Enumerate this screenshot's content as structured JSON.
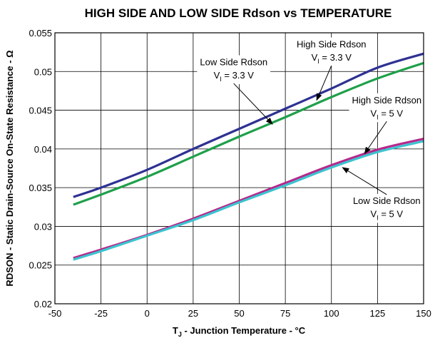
{
  "colors": {
    "high_side_3v3": "#2e3192",
    "low_side_3v3": "#1ea04a",
    "high_side_5v": "#b5288c",
    "low_side_5v": "#3cc3d0",
    "grid": "#000000"
  },
  "chart_data": {
    "type": "line",
    "title": "HIGH SIDE AND LOW SIDE Rdson vs TEMPERATURE",
    "xlabel": {
      "main": "T",
      "sub": "J",
      "rest": " - Junction Temperature - °C"
    },
    "ylabel": "RDSON - Static Drain-Source On-State Resistance - Ω",
    "xlim": [
      -50,
      150
    ],
    "ylim": [
      0.02,
      0.055
    ],
    "xticks": [
      -50,
      -25,
      0,
      25,
      50,
      75,
      100,
      125,
      150
    ],
    "xtick_labels": [
      "-50",
      "-25",
      "0",
      "25",
      "50",
      "75",
      "100",
      "125",
      "150"
    ],
    "yticks": [
      0.02,
      0.025,
      0.03,
      0.035,
      0.04,
      0.045,
      0.05,
      0.055
    ],
    "ytick_labels": [
      "0.02",
      "0.025",
      "0.03",
      "0.035",
      "0.04",
      "0.045",
      "0.05",
      "0.055"
    ],
    "grid": true,
    "series": [
      {
        "name": "High Side Rdson V_I = 3.3 V",
        "color_key": "high_side_3v3",
        "x": [
          -40,
          -25,
          0,
          25,
          50,
          75,
          100,
          125,
          150
        ],
        "y": [
          0.0338,
          0.035,
          0.0373,
          0.04,
          0.0426,
          0.0452,
          0.0478,
          0.0505,
          0.0523
        ]
      },
      {
        "name": "Low Side Rdson V_I = 3.3 V",
        "color_key": "low_side_3v3",
        "x": [
          -40,
          -25,
          0,
          25,
          50,
          75,
          100,
          125,
          150
        ],
        "y": [
          0.0328,
          0.0341,
          0.0364,
          0.039,
          0.0416,
          0.0441,
          0.0467,
          0.0491,
          0.0511
        ]
      },
      {
        "name": "High Side Rdson V_I = 5 V",
        "color_key": "high_side_5v",
        "x": [
          -40,
          -25,
          0,
          25,
          50,
          75,
          100,
          125,
          150
        ],
        "y": [
          0.0259,
          0.027,
          0.0289,
          0.031,
          0.0333,
          0.0356,
          0.0379,
          0.0399,
          0.0413
        ]
      },
      {
        "name": "Low Side Rdson V_I = 5 V",
        "color_key": "low_side_5v",
        "x": [
          -40,
          -25,
          0,
          25,
          50,
          75,
          100,
          125,
          150
        ],
        "y": [
          0.0257,
          0.0268,
          0.0288,
          0.0308,
          0.0331,
          0.0353,
          0.0376,
          0.0396,
          0.041
        ]
      }
    ],
    "annotations": [
      {
        "id": "hs33",
        "line1": "High Side Rdson",
        "v_main": "V",
        "v_sub": "I",
        "v_rest": " = 3.3 V",
        "text_x": 100,
        "text_y1": 0.0531,
        "text_y2": 0.0514,
        "arrow_to": [
          92,
          0.0463
        ]
      },
      {
        "id": "ls33",
        "line1": "Low Side Rdson",
        "v_main": "V",
        "v_sub": "I",
        "v_rest": " = 3.3 V",
        "text_x": 47,
        "text_y1": 0.0508,
        "text_y2": 0.0491,
        "arrow_to": [
          68,
          0.0432
        ]
      },
      {
        "id": "hs5",
        "line1": "High Side Rdson",
        "v_main": "V",
        "v_sub": "I",
        "v_rest": " = 5 V",
        "text_x": 130,
        "text_y1": 0.0459,
        "text_y2": 0.0442,
        "arrow_to": [
          118,
          0.0394
        ]
      },
      {
        "id": "ls5",
        "line1": "Low Side Rdson",
        "v_main": "V",
        "v_sub": "I",
        "v_rest": " = 5 V",
        "text_x": 130,
        "text_y1": 0.0329,
        "text_y2": 0.0312,
        "arrow_to": [
          106,
          0.0376
        ]
      }
    ]
  }
}
